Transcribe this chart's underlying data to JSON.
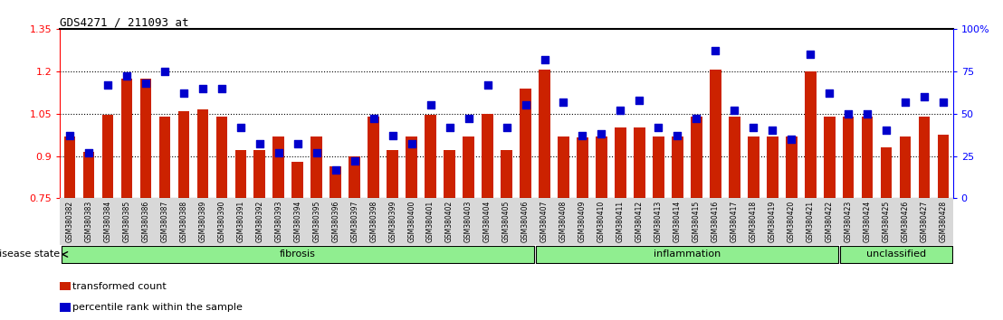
{
  "title": "GDS4271 / 211093_at",
  "samples": [
    "GSM380382",
    "GSM380383",
    "GSM380384",
    "GSM380385",
    "GSM380386",
    "GSM380387",
    "GSM380388",
    "GSM380389",
    "GSM380390",
    "GSM380391",
    "GSM380392",
    "GSM380393",
    "GSM380394",
    "GSM380395",
    "GSM380396",
    "GSM380397",
    "GSM380398",
    "GSM380399",
    "GSM380400",
    "GSM380401",
    "GSM380402",
    "GSM380403",
    "GSM380404",
    "GSM380405",
    "GSM380406",
    "GSM380407",
    "GSM380408",
    "GSM380409",
    "GSM380410",
    "GSM380411",
    "GSM380412",
    "GSM380413",
    "GSM380414",
    "GSM380415",
    "GSM380416",
    "GSM380417",
    "GSM380418",
    "GSM380419",
    "GSM380420",
    "GSM380421",
    "GSM380422",
    "GSM380423",
    "GSM380424",
    "GSM380425",
    "GSM380426",
    "GSM380427",
    "GSM380428"
  ],
  "bar_values": [
    0.97,
    0.915,
    1.045,
    1.175,
    1.175,
    1.04,
    1.06,
    1.065,
    1.04,
    0.92,
    0.92,
    0.97,
    0.88,
    0.97,
    0.865,
    0.9,
    1.04,
    0.92,
    0.97,
    1.045,
    0.92,
    0.97,
    1.05,
    0.92,
    1.14,
    1.205,
    0.97,
    0.965,
    0.97,
    1.0,
    1.0,
    0.97,
    0.97,
    1.04,
    1.205,
    1.04,
    0.97,
    0.97,
    0.97,
    1.2,
    1.04,
    1.04,
    1.04,
    0.93,
    0.97,
    1.04,
    0.975
  ],
  "dot_values": [
    37,
    27,
    67,
    72,
    68,
    75,
    62,
    65,
    65,
    42,
    32,
    27,
    32,
    27,
    17,
    22,
    47,
    37,
    32,
    55,
    42,
    47,
    67,
    42,
    55,
    82,
    57,
    37,
    38,
    52,
    58,
    42,
    37,
    47,
    87,
    52,
    42,
    40,
    35,
    85,
    62,
    50,
    50,
    40,
    57,
    60,
    57
  ],
  "group_boundaries": [
    25,
    41
  ],
  "group_labels": [
    "fibrosis",
    "inflammation",
    "unclassified"
  ],
  "ylim_left": [
    0.75,
    1.35
  ],
  "ylim_right": [
    0,
    100
  ],
  "yticks_left": [
    0.75,
    0.9,
    1.05,
    1.2,
    1.35
  ],
  "yticks_right": [
    0,
    25,
    50,
    75,
    100
  ],
  "ytick_labels_left": [
    "0.75",
    "0.9",
    "1.05",
    "1.2",
    "1.35"
  ],
  "ytick_labels_right": [
    "0",
    "25",
    "50",
    "75",
    "100%"
  ],
  "hlines": [
    0.9,
    1.05,
    1.2
  ],
  "bar_color": "#CC2200",
  "dot_color": "#0000CC",
  "bar_width": 0.6,
  "dot_size": 40,
  "background_color": "#ffffff",
  "plot_bg_color": "#ffffff",
  "xtick_bg_color": "#d8d8d8",
  "group_color": "#90EE90",
  "disease_state_label": "disease state",
  "legend_items": [
    {
      "label": "transformed count",
      "color": "#CC2200"
    },
    {
      "label": "percentile rank within the sample",
      "color": "#0000CC"
    }
  ]
}
